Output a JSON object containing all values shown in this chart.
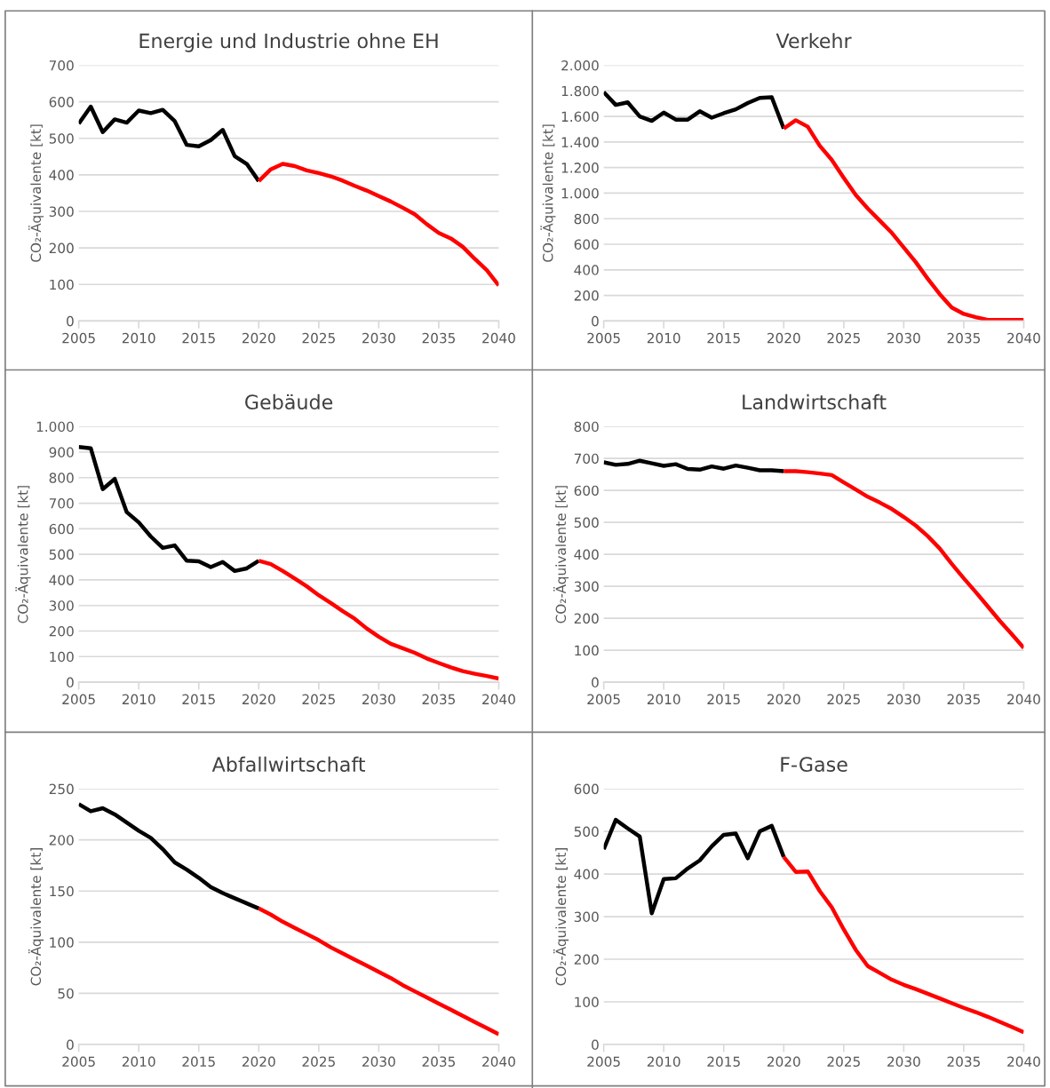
{
  "chart_data": [
    {
      "type": "line",
      "title": "Energie und Industrie ohne EH",
      "ylabel": "CO₂-Äquivalente [kt]",
      "xlim": [
        2005,
        2040
      ],
      "xticks": [
        2005,
        2010,
        2015,
        2020,
        2025,
        2030,
        2035,
        2040
      ],
      "ylim": [
        0,
        700
      ],
      "yticks": [
        0,
        100,
        200,
        300,
        400,
        500,
        600,
        700
      ],
      "grid": "y",
      "series": [
        {
          "color": "#000000",
          "x": [
            2005,
            2006,
            2007,
            2008,
            2009,
            2010,
            2011,
            2012,
            2013,
            2014,
            2015,
            2016,
            2017,
            2018,
            2019,
            2020
          ],
          "values": [
            540,
            587,
            517,
            552,
            543,
            576,
            569,
            578,
            547,
            482,
            478,
            495,
            523,
            451,
            430,
            383
          ]
        },
        {
          "color": "#ff0000",
          "x": [
            2020,
            2021,
            2022,
            2023,
            2024,
            2025,
            2026,
            2027,
            2028,
            2029,
            2030,
            2031,
            2032,
            2033,
            2034,
            2035,
            2036,
            2037,
            2038,
            2039,
            2040
          ],
          "values": [
            383,
            415,
            430,
            424,
            412,
            405,
            396,
            384,
            370,
            357,
            342,
            327,
            310,
            292,
            265,
            241,
            226,
            203,
            170,
            139,
            97
          ]
        }
      ]
    },
    {
      "type": "line",
      "title": "Verkehr",
      "ylabel": "CO₂-Äquivalente [kt]",
      "xlim": [
        2005,
        2040
      ],
      "xticks": [
        2005,
        2010,
        2015,
        2020,
        2025,
        2030,
        2035,
        2040
      ],
      "ylim": [
        0,
        2000
      ],
      "yticks": [
        0,
        200,
        400,
        600,
        800,
        {
          "value": 1000,
          "label": "1.000"
        },
        {
          "value": 1200,
          "label": "1.200"
        },
        {
          "value": 1400,
          "label": "1.400"
        },
        {
          "value": 1600,
          "label": "1.600"
        },
        {
          "value": 1800,
          "label": "1.800"
        },
        {
          "value": 2000,
          "label": "2.000"
        }
      ],
      "grid": "y",
      "series": [
        {
          "color": "#000000",
          "x": [
            2005,
            2006,
            2007,
            2008,
            2009,
            2010,
            2011,
            2012,
            2013,
            2014,
            2015,
            2016,
            2017,
            2018,
            2019,
            2020
          ],
          "values": [
            1790,
            1690,
            1710,
            1600,
            1565,
            1630,
            1575,
            1575,
            1640,
            1590,
            1625,
            1655,
            1705,
            1745,
            1750,
            1505
          ]
        },
        {
          "color": "#ff0000",
          "x": [
            2020,
            2021,
            2022,
            2023,
            2024,
            2025,
            2026,
            2027,
            2028,
            2029,
            2030,
            2031,
            2032,
            2033,
            2034,
            2035,
            2036,
            2037,
            2038,
            2039,
            2040
          ],
          "values": [
            1505,
            1570,
            1520,
            1370,
            1260,
            1120,
            985,
            880,
            785,
            690,
            575,
            460,
            330,
            210,
            105,
            55,
            30,
            8,
            8,
            8,
            8
          ]
        }
      ]
    },
    {
      "type": "line",
      "title": "Gebäude",
      "ylabel": "CO₂-Äquivalente [kt]",
      "xlim": [
        2005,
        2040
      ],
      "xticks": [
        2005,
        2010,
        2015,
        2020,
        2025,
        2030,
        2035,
        2040
      ],
      "ylim": [
        0,
        1000
      ],
      "yticks": [
        0,
        100,
        200,
        300,
        400,
        500,
        600,
        700,
        800,
        900,
        {
          "value": 1000,
          "label": "1.000"
        }
      ],
      "grid": "y",
      "series": [
        {
          "color": "#000000",
          "x": [
            2005,
            2006,
            2007,
            2008,
            2009,
            2010,
            2011,
            2012,
            2013,
            2014,
            2015,
            2016,
            2017,
            2018,
            2019,
            2020
          ],
          "values": [
            920,
            915,
            755,
            795,
            665,
            625,
            570,
            525,
            535,
            475,
            473,
            450,
            470,
            435,
            445,
            475
          ]
        },
        {
          "color": "#ff0000",
          "x": [
            2020,
            2021,
            2022,
            2023,
            2024,
            2025,
            2026,
            2027,
            2028,
            2029,
            2030,
            2031,
            2032,
            2033,
            2034,
            2035,
            2036,
            2037,
            2038,
            2039,
            2040
          ],
          "values": [
            475,
            462,
            435,
            405,
            375,
            340,
            310,
            278,
            248,
            210,
            178,
            150,
            133,
            115,
            93,
            75,
            58,
            43,
            33,
            24,
            14
          ]
        }
      ]
    },
    {
      "type": "line",
      "title": "Landwirtschaft",
      "ylabel": "CO₂-Äquivalente [kt]",
      "xlim": [
        2005,
        2040
      ],
      "xticks": [
        2005,
        2010,
        2015,
        2020,
        2025,
        2030,
        2035,
        2040
      ],
      "ylim": [
        0,
        800
      ],
      "yticks": [
        0,
        100,
        200,
        300,
        400,
        500,
        600,
        700,
        800
      ],
      "grid": "y",
      "series": [
        {
          "color": "#000000",
          "x": [
            2005,
            2006,
            2007,
            2008,
            2009,
            2010,
            2011,
            2012,
            2013,
            2014,
            2015,
            2016,
            2017,
            2018,
            2019,
            2020
          ],
          "values": [
            688,
            680,
            683,
            693,
            685,
            677,
            682,
            667,
            665,
            675,
            668,
            678,
            671,
            663,
            663,
            660
          ]
        },
        {
          "color": "#ff0000",
          "x": [
            2020,
            2021,
            2022,
            2023,
            2024,
            2025,
            2026,
            2027,
            2028,
            2029,
            2030,
            2031,
            2032,
            2033,
            2034,
            2035,
            2036,
            2037,
            2038,
            2039,
            2040
          ],
          "values": [
            660,
            660,
            657,
            653,
            648,
            625,
            603,
            580,
            562,
            542,
            517,
            490,
            457,
            418,
            370,
            325,
            282,
            237,
            192,
            150,
            107
          ]
        }
      ]
    },
    {
      "type": "line",
      "title": "Abfallwirtschaft",
      "ylabel": "CO₂-Äquivalente [kt]",
      "xlim": [
        2005,
        2040
      ],
      "xticks": [
        2005,
        2010,
        2015,
        2020,
        2025,
        2030,
        2035,
        2040
      ],
      "ylim": [
        0,
        250
      ],
      "yticks": [
        0,
        50,
        100,
        150,
        200,
        250
      ],
      "grid": "y",
      "series": [
        {
          "color": "#000000",
          "x": [
            2005,
            2006,
            2007,
            2008,
            2009,
            2010,
            2011,
            2012,
            2013,
            2014,
            2015,
            2016,
            2017,
            2018,
            2019,
            2020
          ],
          "values": [
            235,
            228,
            231,
            225,
            217,
            209,
            202,
            191,
            178,
            171,
            163,
            154,
            148,
            143,
            138,
            133
          ]
        },
        {
          "color": "#ff0000",
          "x": [
            2020,
            2021,
            2022,
            2023,
            2024,
            2025,
            2026,
            2027,
            2028,
            2029,
            2030,
            2031,
            2032,
            2033,
            2034,
            2035,
            2036,
            2037,
            2038,
            2039,
            2040
          ],
          "values": [
            133,
            127,
            120,
            114,
            108,
            102,
            95,
            89,
            83,
            77,
            71,
            65,
            58,
            52,
            46,
            40,
            34,
            28,
            22,
            16,
            10
          ]
        }
      ]
    },
    {
      "type": "line",
      "title": "F-Gase",
      "ylabel": "CO₂-Äquivalente [kt]",
      "xlim": [
        2005,
        2040
      ],
      "xticks": [
        2005,
        2010,
        2015,
        2020,
        2025,
        2030,
        2035,
        2040
      ],
      "ylim": [
        0,
        600
      ],
      "yticks": [
        0,
        100,
        200,
        300,
        400,
        500,
        600
      ],
      "grid": "y",
      "series": [
        {
          "color": "#000000",
          "x": [
            2005,
            2006,
            2007,
            2008,
            2009,
            2010,
            2011,
            2012,
            2013,
            2014,
            2015,
            2016,
            2017,
            2018,
            2019,
            2020
          ],
          "values": [
            458,
            527,
            507,
            488,
            308,
            388,
            390,
            413,
            432,
            465,
            492,
            495,
            437,
            500,
            513,
            440
          ]
        },
        {
          "color": "#ff0000",
          "x": [
            2020,
            2021,
            2022,
            2023,
            2024,
            2025,
            2026,
            2027,
            2028,
            2029,
            2030,
            2031,
            2032,
            2033,
            2034,
            2035,
            2036,
            2037,
            2038,
            2039,
            2040
          ],
          "values": [
            440,
            405,
            406,
            360,
            322,
            270,
            222,
            184,
            168,
            152,
            140,
            130,
            119,
            108,
            97,
            86,
            76,
            65,
            53,
            41,
            29
          ]
        }
      ]
    }
  ]
}
